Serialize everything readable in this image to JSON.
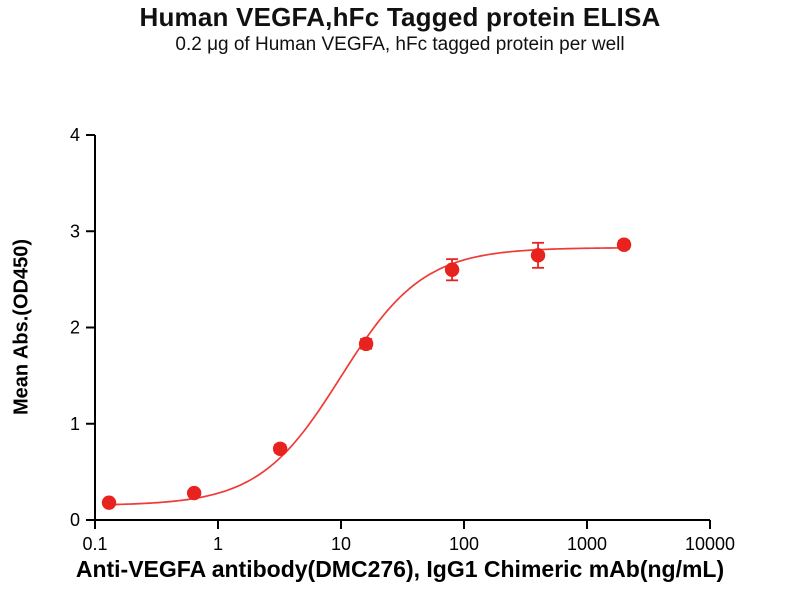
{
  "chart_data": {
    "type": "scatter",
    "title": "Human VEGFA,hFc Tagged protein ELISA",
    "subtitle": "0.2 μg of Human VEGFA, hFc tagged protein per well",
    "xlabel": "Anti-VEGFA antibody(DMC276), IgG1 Chimeric mAb(ng/mL)",
    "ylabel": "Mean Abs.(OD450)",
    "x_scale": "log10",
    "xlim": [
      0.1,
      10000
    ],
    "ylim": [
      0,
      4
    ],
    "x_ticks": [
      "0.1",
      "1",
      "10",
      "100",
      "1000",
      "10000"
    ],
    "y_ticks": [
      "0",
      "1",
      "2",
      "3",
      "4"
    ],
    "legend": "none",
    "grid": false,
    "points": [
      {
        "x": 0.13,
        "y": 0.18,
        "err": 0.03
      },
      {
        "x": 0.64,
        "y": 0.28,
        "err": 0.03
      },
      {
        "x": 3.2,
        "y": 0.74,
        "err": 0.04
      },
      {
        "x": 16,
        "y": 1.83,
        "err": 0.05
      },
      {
        "x": 80,
        "y": 2.6,
        "err": 0.11
      },
      {
        "x": 400,
        "y": 2.75,
        "err": 0.13
      },
      {
        "x": 2000,
        "y": 2.86,
        "err": 0.04
      }
    ],
    "fit": {
      "model": "4PL",
      "bottom": 0.15,
      "top": 2.83,
      "ec50": 10,
      "hill": 1.3
    },
    "marker_color": "#e8231f",
    "line_color": "#ef3b37",
    "axis_color": "#000000",
    "text_color": "#000000"
  }
}
